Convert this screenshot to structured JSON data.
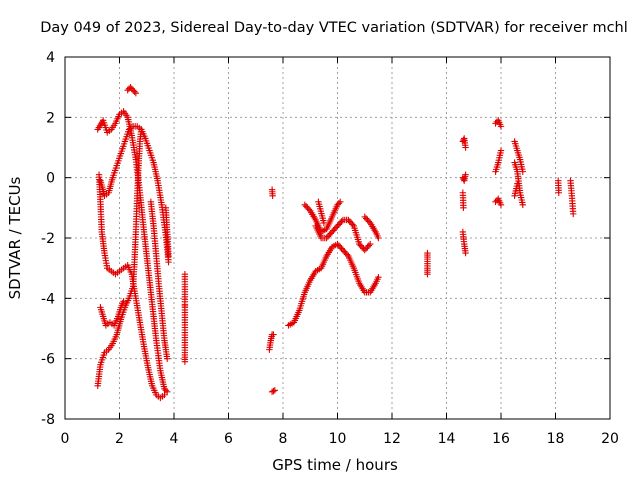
{
  "chart_data": {
    "type": "scatter",
    "title": "Day 049 of 2023, Sidereal Day-to-day VTEC variation (SDTVAR) for receiver mchl",
    "xlabel": "GPS time / hours",
    "ylabel": "SDTVAR / TECUs",
    "xlim": [
      0,
      20
    ],
    "ylim": [
      -8,
      4
    ],
    "xticks": [
      "0",
      "2",
      "4",
      "6",
      "8",
      "10",
      "12",
      "14",
      "16",
      "18",
      "20"
    ],
    "yticks": [
      "-8",
      "-6",
      "-4",
      "-2",
      "0",
      "2",
      "4"
    ],
    "grid": true,
    "marker": "+",
    "color": "#e00000",
    "tracks": [
      [
        [
          1.2,
          1.6
        ],
        [
          1.4,
          1.9
        ],
        [
          1.55,
          1.5
        ],
        [
          1.7,
          1.6
        ],
        [
          1.85,
          1.8
        ],
        [
          2.0,
          2.1
        ],
        [
          2.15,
          2.2
        ],
        [
          2.3,
          2.0
        ],
        [
          2.45,
          1.4
        ],
        [
          2.6,
          0.6
        ],
        [
          2.75,
          -0.5
        ],
        [
          2.9,
          -1.8
        ],
        [
          3.05,
          -3.0
        ],
        [
          3.2,
          -4.2
        ],
        [
          3.35,
          -5.4
        ],
        [
          3.5,
          -6.4
        ],
        [
          3.65,
          -7.0
        ],
        [
          3.75,
          -7.1
        ]
      ],
      [
        [
          1.25,
          0.1
        ],
        [
          1.3,
          -0.8
        ],
        [
          1.35,
          -1.8
        ],
        [
          1.45,
          -2.5
        ],
        [
          1.55,
          -3.0
        ],
        [
          1.7,
          -3.1
        ],
        [
          1.85,
          -3.2
        ],
        [
          2.0,
          -3.1
        ],
        [
          2.15,
          -3.0
        ],
        [
          2.3,
          -2.9
        ],
        [
          2.45,
          -3.2
        ],
        [
          2.6,
          -4.0
        ],
        [
          2.75,
          -4.8
        ],
        [
          2.9,
          -5.6
        ],
        [
          3.05,
          -6.3
        ],
        [
          3.2,
          -6.9
        ],
        [
          3.35,
          -7.2
        ],
        [
          3.5,
          -7.3
        ],
        [
          3.65,
          -7.2
        ]
      ],
      [
        [
          1.3,
          -0.1
        ],
        [
          1.45,
          -0.6
        ],
        [
          1.6,
          -0.5
        ],
        [
          1.75,
          0.0
        ],
        [
          1.9,
          0.4
        ],
        [
          2.05,
          0.8
        ],
        [
          2.2,
          1.2
        ],
        [
          2.35,
          1.6
        ],
        [
          2.5,
          1.7
        ],
        [
          2.65,
          1.7
        ],
        [
          2.8,
          1.6
        ],
        [
          2.95,
          1.3
        ],
        [
          3.1,
          0.9
        ],
        [
          3.25,
          0.5
        ],
        [
          3.4,
          -0.1
        ],
        [
          3.55,
          -0.9
        ],
        [
          3.7,
          -1.9
        ],
        [
          3.8,
          -2.8
        ]
      ],
      [
        [
          1.2,
          -6.9
        ],
        [
          1.3,
          -6.2
        ],
        [
          1.45,
          -5.8
        ],
        [
          1.6,
          -5.7
        ],
        [
          1.75,
          -5.5
        ],
        [
          1.9,
          -5.2
        ],
        [
          2.05,
          -4.7
        ],
        [
          2.2,
          -4.3
        ],
        [
          2.35,
          -4.0
        ],
        [
          2.5,
          -3.6
        ],
        [
          2.55,
          -2.8
        ],
        [
          2.6,
          -1.8
        ],
        [
          2.65,
          -0.6
        ],
        [
          2.7,
          0.4
        ],
        [
          2.75,
          1.2
        ],
        [
          2.8,
          1.6
        ]
      ],
      [
        [
          1.3,
          -4.3
        ],
        [
          1.4,
          -4.6
        ],
        [
          1.5,
          -4.9
        ],
        [
          1.65,
          -4.8
        ],
        [
          1.8,
          -4.9
        ],
        [
          1.95,
          -4.6
        ],
        [
          2.05,
          -4.3
        ],
        [
          2.15,
          -4.1
        ]
      ],
      [
        [
          2.3,
          2.9
        ],
        [
          2.4,
          3.0
        ],
        [
          2.5,
          2.9
        ],
        [
          2.6,
          2.8
        ]
      ],
      [
        [
          3.15,
          -0.8
        ],
        [
          3.25,
          -1.6
        ],
        [
          3.35,
          -2.6
        ],
        [
          3.45,
          -3.6
        ],
        [
          3.55,
          -4.5
        ],
        [
          3.65,
          -5.4
        ],
        [
          3.75,
          -6.0
        ]
      ],
      [
        [
          3.7,
          -1.0
        ],
        [
          3.75,
          -1.8
        ],
        [
          3.8,
          -2.6
        ]
      ],
      [
        [
          4.4,
          -3.2
        ],
        [
          4.4,
          -4.2
        ],
        [
          4.4,
          -4.3
        ],
        [
          4.4,
          -5.8
        ],
        [
          4.4,
          -6.1
        ]
      ],
      [
        [
          7.6,
          -0.4
        ],
        [
          7.62,
          -0.6
        ]
      ],
      [
        [
          7.5,
          -5.7
        ],
        [
          7.55,
          -5.4
        ],
        [
          7.6,
          -5.2
        ],
        [
          7.65,
          -5.2
        ]
      ],
      [
        [
          7.6,
          -7.1
        ],
        [
          7.7,
          -7.05
        ]
      ],
      [
        [
          8.2,
          -4.9
        ],
        [
          8.4,
          -4.8
        ],
        [
          8.6,
          -4.4
        ],
        [
          8.8,
          -3.8
        ],
        [
          9.0,
          -3.4
        ],
        [
          9.2,
          -3.1
        ],
        [
          9.4,
          -3.0
        ],
        [
          9.6,
          -2.6
        ],
        [
          9.8,
          -2.3
        ],
        [
          10.0,
          -2.2
        ],
        [
          10.2,
          -2.4
        ],
        [
          10.4,
          -2.6
        ],
        [
          10.6,
          -3.0
        ],
        [
          10.8,
          -3.5
        ],
        [
          11.0,
          -3.8
        ],
        [
          11.2,
          -3.8
        ],
        [
          11.4,
          -3.5
        ],
        [
          11.5,
          -3.3
        ]
      ],
      [
        [
          8.8,
          -0.9
        ],
        [
          9.0,
          -1.1
        ],
        [
          9.2,
          -1.4
        ],
        [
          9.4,
          -1.8
        ],
        [
          9.6,
          -1.7
        ],
        [
          9.8,
          -1.3
        ],
        [
          10.0,
          -0.9
        ],
        [
          10.1,
          -0.8
        ]
      ],
      [
        [
          9.2,
          -1.6
        ],
        [
          9.4,
          -2.0
        ],
        [
          9.6,
          -2.0
        ],
        [
          9.8,
          -1.8
        ],
        [
          10.0,
          -1.6
        ],
        [
          10.2,
          -1.4
        ],
        [
          10.4,
          -1.4
        ],
        [
          10.6,
          -1.6
        ],
        [
          10.8,
          -2.2
        ],
        [
          11.0,
          -2.4
        ],
        [
          11.2,
          -2.2
        ]
      ],
      [
        [
          9.3,
          -0.8
        ],
        [
          9.5,
          -1.5
        ]
      ],
      [
        [
          11.0,
          -1.3
        ],
        [
          11.2,
          -1.5
        ],
        [
          11.4,
          -1.8
        ],
        [
          11.5,
          -2.0
        ]
      ],
      [
        [
          13.3,
          -2.5
        ],
        [
          13.3,
          -2.7
        ],
        [
          13.3,
          -3.0
        ],
        [
          13.3,
          -3.2
        ]
      ],
      [
        [
          14.6,
          1.2
        ],
        [
          14.65,
          1.3
        ],
        [
          14.7,
          1.0
        ]
      ],
      [
        [
          14.6,
          0.0
        ],
        [
          14.65,
          -0.1
        ],
        [
          14.7,
          0.1
        ]
      ],
      [
        [
          14.6,
          -0.5
        ],
        [
          14.62,
          -1.0
        ]
      ],
      [
        [
          14.6,
          -1.8
        ],
        [
          14.65,
          -2.2
        ],
        [
          14.7,
          -2.5
        ]
      ],
      [
        [
          15.8,
          1.8
        ],
        [
          15.9,
          1.9
        ],
        [
          16.0,
          1.7
        ]
      ],
      [
        [
          15.8,
          0.2
        ],
        [
          15.9,
          0.5
        ],
        [
          16.0,
          0.9
        ]
      ],
      [
        [
          15.8,
          -0.8
        ],
        [
          15.9,
          -0.7
        ],
        [
          16.0,
          -0.9
        ]
      ],
      [
        [
          16.5,
          1.2
        ],
        [
          16.6,
          0.9
        ],
        [
          16.7,
          0.6
        ],
        [
          16.8,
          0.2
        ]
      ],
      [
        [
          16.5,
          0.5
        ],
        [
          16.6,
          0.2
        ],
        [
          16.7,
          -0.5
        ],
        [
          16.8,
          -0.9
        ]
      ],
      [
        [
          16.5,
          -0.6
        ],
        [
          16.6,
          -0.2
        ]
      ],
      [
        [
          18.1,
          -0.1
        ],
        [
          18.12,
          -0.5
        ]
      ],
      [
        [
          18.55,
          -0.1
        ],
        [
          18.6,
          -0.6
        ],
        [
          18.65,
          -1.2
        ]
      ]
    ]
  }
}
